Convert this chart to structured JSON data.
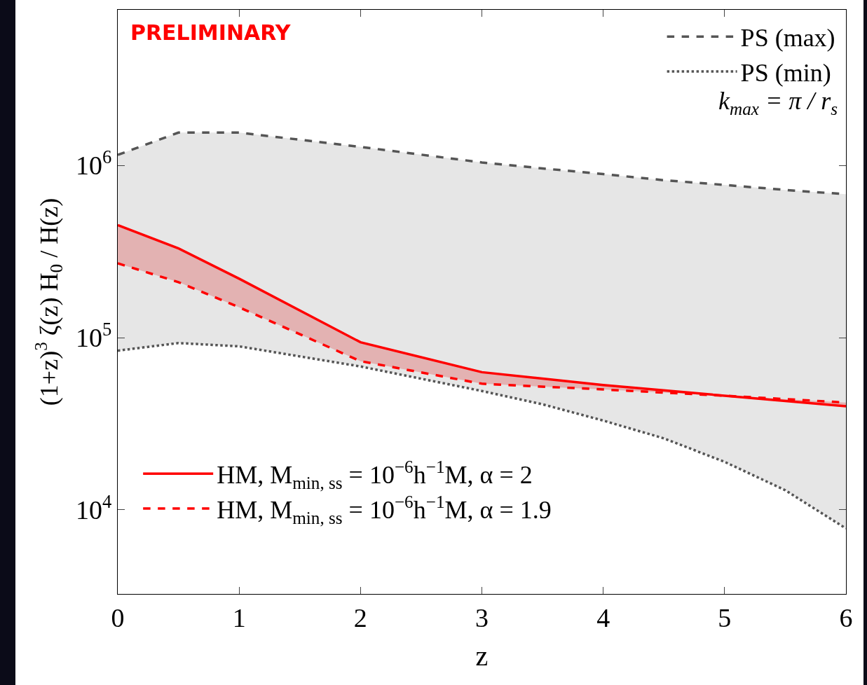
{
  "chart_data": {
    "type": "line",
    "xlabel": "z",
    "ylabel": "(1+z)$^{3}$ ζ(z) H$_{0}$ / H(z)",
    "annotations": [
      "PRELIMINARY",
      "k$_{max}$ = π / r$_{s}$"
    ],
    "x": [
      0,
      0.5,
      1,
      2,
      3,
      3.5,
      4,
      4.5,
      5,
      5.5,
      6
    ],
    "series": [
      {
        "name": "PS (max)",
        "color": "#555555",
        "line_style": "dashed",
        "values": [
          1150000,
          1550000,
          1550000,
          1280000,
          1040000,
          960000,
          890000,
          820000,
          770000,
          720000,
          680000
        ],
        "lower": [
          84000,
          93000,
          89000,
          68000,
          49000,
          41000,
          33000,
          26000,
          19000,
          13000,
          7800
        ],
        "upper": [
          1150000,
          1550000,
          1550000,
          1280000,
          1040000,
          960000,
          890000,
          820000,
          770000,
          720000,
          680000
        ]
      },
      {
        "name": "PS (min)",
        "color": "#555555",
        "line_style": "dotted",
        "values": [
          84000,
          93000,
          89000,
          68000,
          49000,
          41000,
          33000,
          26000,
          19000,
          13000,
          7800
        ]
      },
      {
        "name": "HM, M$_{min, ss}$ = 10$^{−6}$h$^{−1}$M, α = 2",
        "color": "#ff0000",
        "line_style": "solid",
        "x": [
          0,
          0.5,
          1,
          2,
          3,
          4,
          5,
          6
        ],
        "values": [
          450000,
          330000,
          220000,
          94000,
          63000,
          53000,
          46000,
          40000
        ],
        "lower": [
          270000,
          210000,
          150000,
          73000,
          54000,
          50000,
          46000,
          42000
        ],
        "upper": [
          450000,
          330000,
          220000,
          94000,
          63000,
          53000,
          46000,
          40000
        ]
      },
      {
        "name": "HM, M$_{min, ss}$ = 10$^{−6}$h$^{−1}$M, α = 1.9",
        "color": "#ff0000",
        "line_style": "dashed",
        "x": [
          0,
          0.5,
          1,
          2,
          3,
          4,
          5,
          6
        ],
        "values": [
          270000,
          210000,
          150000,
          73000,
          54000,
          50000,
          46000,
          42000
        ]
      }
    ],
    "log": "y",
    "grid": false,
    "legend": [
      "top right",
      "bottom left"
    ],
    "marker": "none",
    "xlim": [
      0,
      6
    ],
    "xticks": [
      0,
      1,
      2,
      3,
      4,
      5,
      6
    ],
    "ylim": [
      3250,
      8000000
    ],
    "yticks": [
      {
        "value": 10000,
        "label": "10$^{4}$"
      },
      {
        "value": 100000,
        "label": "10$^{5}$"
      },
      {
        "value": 1000000,
        "label": "10$^{6}$"
      }
    ]
  }
}
